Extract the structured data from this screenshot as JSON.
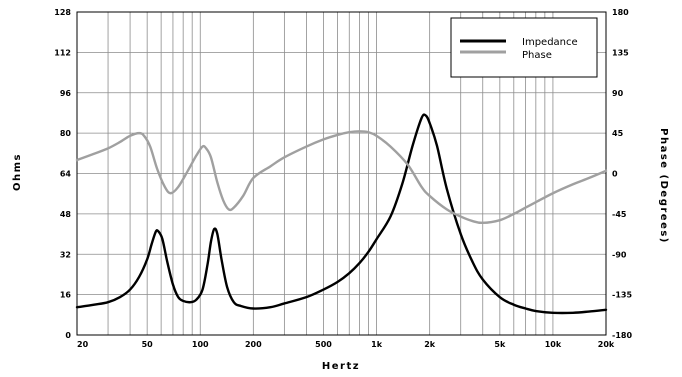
{
  "chart_data": {
    "type": "line",
    "xlabel": "Hertz",
    "ylabel": "Ohms",
    "y2label": "Phase (Degrees)",
    "x_scale": "log",
    "xlim": [
      20,
      20000
    ],
    "ylim": [
      0,
      128
    ],
    "y2lim": [
      -180,
      180
    ],
    "grid": true,
    "legend_position": "top-right",
    "x_ticks": [
      20,
      50,
      100,
      200,
      500,
      1000,
      2000,
      5000,
      10000,
      20000
    ],
    "x_tick_labels": [
      "20",
      "50",
      "100",
      "200",
      "500",
      "1k",
      "2k",
      "5k",
      "10k",
      "20k"
    ],
    "y_ticks": [
      0,
      16,
      32,
      48,
      64,
      80,
      96,
      112,
      128
    ],
    "y_tick_labels": [
      "0",
      "16",
      "32",
      "48",
      "64",
      "80",
      "96",
      "112",
      "128"
    ],
    "y2_ticks": [
      -180,
      -135,
      -90,
      -45,
      0,
      45,
      90,
      135,
      180
    ],
    "y2_tick_labels": [
      "-180",
      "-135",
      "-90",
      "-45",
      "0",
      "45",
      "90",
      "135",
      "180"
    ],
    "series": [
      {
        "name": "Impedance",
        "axis": "left",
        "color": "#000000",
        "points": [
          [
            20,
            11
          ],
          [
            25,
            12
          ],
          [
            30,
            13
          ],
          [
            35,
            15
          ],
          [
            40,
            18
          ],
          [
            45,
            23
          ],
          [
            50,
            30
          ],
          [
            53,
            36
          ],
          [
            56,
            41
          ],
          [
            58,
            41
          ],
          [
            61,
            38
          ],
          [
            65,
            29
          ],
          [
            70,
            20
          ],
          [
            75,
            15
          ],
          [
            80,
            13.5
          ],
          [
            88,
            13
          ],
          [
            95,
            14
          ],
          [
            103,
            18
          ],
          [
            110,
            28
          ],
          [
            115,
            37
          ],
          [
            120,
            42
          ],
          [
            125,
            40
          ],
          [
            132,
            30
          ],
          [
            142,
            19
          ],
          [
            155,
            13
          ],
          [
            170,
            11.5
          ],
          [
            200,
            10.5
          ],
          [
            250,
            11
          ],
          [
            300,
            12.5
          ],
          [
            400,
            15
          ],
          [
            500,
            18
          ],
          [
            600,
            21
          ],
          [
            700,
            24.5
          ],
          [
            800,
            28.5
          ],
          [
            900,
            33
          ],
          [
            1000,
            38
          ],
          [
            1200,
            47
          ],
          [
            1400,
            60
          ],
          [
            1600,
            75
          ],
          [
            1800,
            86
          ],
          [
            1900,
            87
          ],
          [
            2000,
            84
          ],
          [
            2200,
            75
          ],
          [
            2500,
            58
          ],
          [
            3000,
            40
          ],
          [
            3500,
            29
          ],
          [
            4000,
            22
          ],
          [
            5000,
            15
          ],
          [
            6000,
            12
          ],
          [
            7000,
            10.5
          ],
          [
            8000,
            9.5
          ],
          [
            10000,
            8.8
          ],
          [
            13000,
            8.8
          ],
          [
            16000,
            9.3
          ],
          [
            20000,
            10
          ]
        ]
      },
      {
        "name": "Phase",
        "axis": "right",
        "color": "#a0a0a0",
        "points": [
          [
            20,
            15
          ],
          [
            25,
            22
          ],
          [
            30,
            28
          ],
          [
            35,
            35
          ],
          [
            40,
            42
          ],
          [
            45,
            45
          ],
          [
            48,
            42
          ],
          [
            52,
            30
          ],
          [
            57,
            5
          ],
          [
            63,
            -15
          ],
          [
            68,
            -22
          ],
          [
            75,
            -15
          ],
          [
            85,
            3
          ],
          [
            95,
            20
          ],
          [
            103,
            30
          ],
          [
            108,
            28
          ],
          [
            115,
            18
          ],
          [
            125,
            -10
          ],
          [
            135,
            -30
          ],
          [
            145,
            -40
          ],
          [
            155,
            -38
          ],
          [
            175,
            -25
          ],
          [
            200,
            -5
          ],
          [
            250,
            8
          ],
          [
            300,
            18
          ],
          [
            400,
            30
          ],
          [
            500,
            38
          ],
          [
            600,
            43
          ],
          [
            700,
            46
          ],
          [
            800,
            47
          ],
          [
            900,
            46
          ],
          [
            1000,
            42
          ],
          [
            1200,
            30
          ],
          [
            1500,
            10
          ],
          [
            1800,
            -15
          ],
          [
            2000,
            -25
          ],
          [
            2500,
            -40
          ],
          [
            3000,
            -48
          ],
          [
            3500,
            -53
          ],
          [
            4000,
            -55
          ],
          [
            5000,
            -52
          ],
          [
            6000,
            -45
          ],
          [
            7000,
            -38
          ],
          [
            8000,
            -32
          ],
          [
            10000,
            -22
          ],
          [
            13000,
            -12
          ],
          [
            16000,
            -5
          ],
          [
            20000,
            3
          ]
        ]
      }
    ]
  }
}
